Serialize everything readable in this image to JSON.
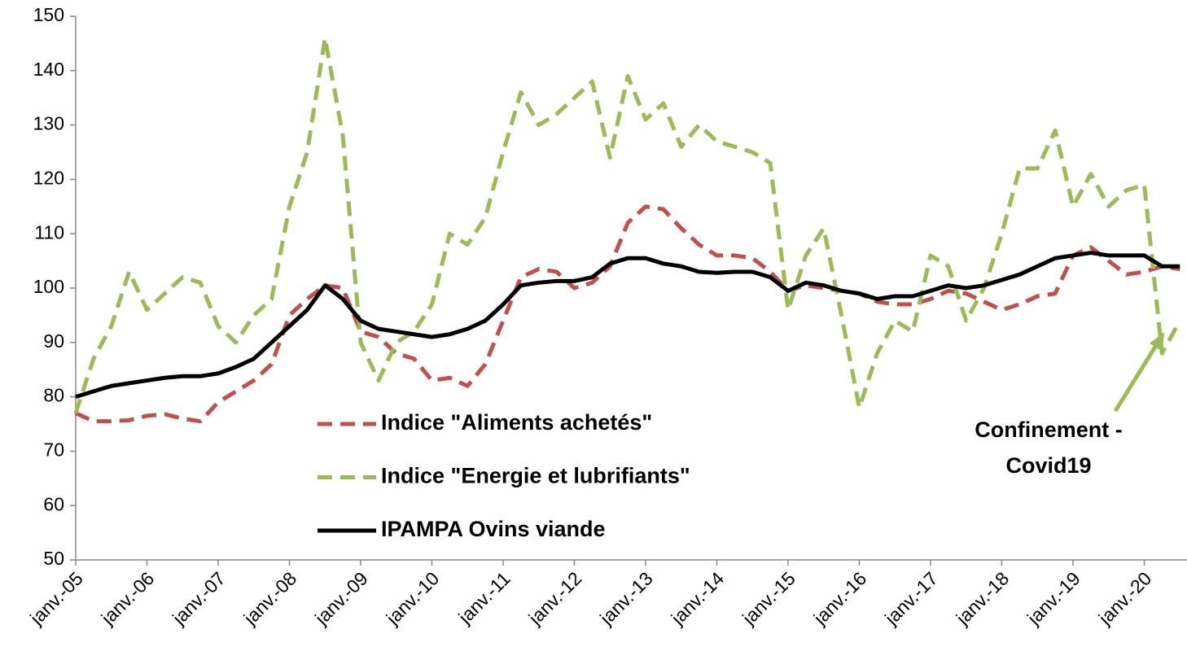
{
  "chart_data": {
    "type": "line",
    "categories": [
      "janv.-05",
      null,
      null,
      null,
      "janv.-06",
      null,
      null,
      null,
      "janv.-07",
      null,
      null,
      null,
      "janv.-08",
      null,
      null,
      null,
      "janv.-09",
      null,
      null,
      null,
      "janv.-10",
      null,
      null,
      null,
      "janv.-11",
      null,
      null,
      null,
      "janv.-12",
      null,
      null,
      null,
      "janv.-13",
      null,
      null,
      null,
      "janv.-14",
      null,
      null,
      null,
      "janv.-15",
      null,
      null,
      null,
      "janv.-16",
      null,
      null,
      null,
      "janv.-17",
      null,
      null,
      null,
      "janv.-18",
      null,
      null,
      null,
      "janv.-19",
      null,
      null,
      null,
      "janv.-20",
      null,
      null
    ],
    "series": [
      {
        "name": "Indice \"Aliments achetés\"",
        "color": "#c0504d",
        "dash": true,
        "values": [
          77,
          75.5,
          75.5,
          75.7,
          76.5,
          76.8,
          76,
          75.5,
          79,
          81,
          83,
          86,
          95,
          98,
          100.5,
          100,
          92,
          91,
          88,
          87,
          83,
          83.5,
          82,
          86,
          94,
          102,
          103.5,
          103,
          100,
          101,
          104,
          112,
          115,
          114.5,
          111,
          108,
          106,
          106,
          105.5,
          103,
          99.5,
          100.5,
          100,
          99.5,
          99,
          97.5,
          97,
          97,
          98,
          99.5,
          99,
          97.5,
          96,
          97,
          98.5,
          99,
          106,
          107.5,
          105,
          102.5,
          103,
          104,
          103.5
        ]
      },
      {
        "name": "Indice \"Energie et lubrifiants\"",
        "color": "#9bbb59",
        "dash": true,
        "values": [
          77,
          87,
          93,
          103,
          96,
          99,
          102,
          101,
          93,
          90,
          95,
          98,
          115,
          125,
          146,
          128,
          90,
          83,
          90,
          92,
          97,
          110,
          108,
          113,
          125,
          136,
          130,
          132,
          135,
          138,
          124,
          139,
          131,
          134,
          126,
          130,
          127,
          126,
          125,
          123,
          96,
          106,
          111,
          95,
          78,
          88,
          94,
          92,
          106,
          104,
          94,
          100,
          110,
          122,
          122,
          129,
          115,
          121,
          115,
          118,
          119,
          88,
          94
        ]
      },
      {
        "name": "IPAMPA Ovins viande",
        "color": "#000000",
        "dash": false,
        "values": [
          80,
          81,
          82,
          82.5,
          83,
          83.5,
          83.8,
          83.8,
          84.3,
          85.5,
          87,
          90,
          93,
          96,
          100.5,
          98,
          94,
          92.5,
          92,
          91.5,
          91,
          91.5,
          92.5,
          94,
          97,
          100.5,
          101,
          101.3,
          101.3,
          102,
          104.5,
          105.5,
          105.5,
          104.5,
          104,
          103,
          102.8,
          103,
          103,
          102,
          99.5,
          101,
          100.5,
          99.5,
          99,
          98,
          98.5,
          98.5,
          99.5,
          100.5,
          100,
          100.5,
          101.5,
          102.5,
          104,
          105.5,
          106,
          106.5,
          106,
          106,
          106,
          104,
          104
        ]
      }
    ],
    "ylim": [
      50,
      150
    ],
    "yticks": [
      50,
      60,
      70,
      80,
      90,
      100,
      110,
      120,
      130,
      140,
      150
    ],
    "annotation": [
      "Confinement -",
      "Covid19"
    ],
    "annotation_color": "#9bbb59"
  }
}
